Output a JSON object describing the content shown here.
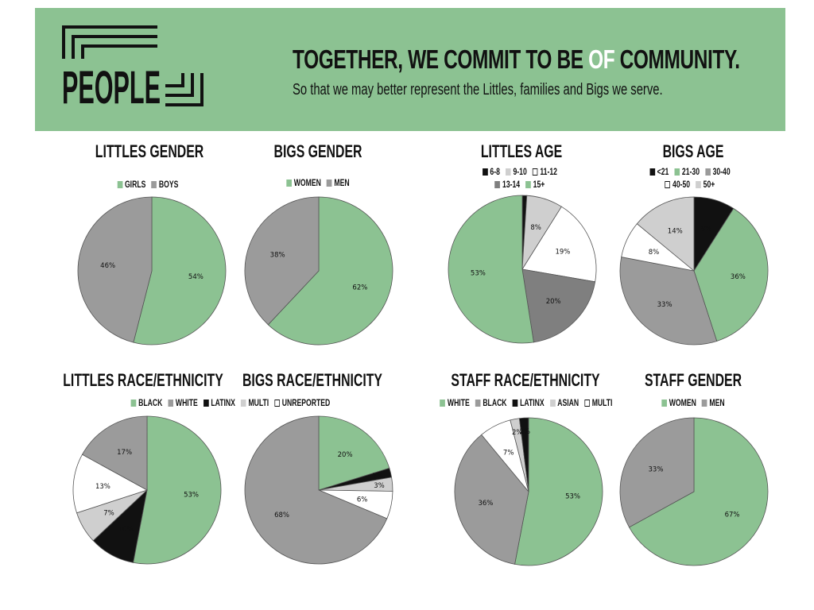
{
  "header": {
    "logo_text": "PEOPLE",
    "headline_pre": "TOGETHER, WE COMMIT TO BE ",
    "headline_of": "OF",
    "headline_post": " COMMUNITY.",
    "subline": "So that we may better represent the Littles, families and Bigs we serve.",
    "background_color": "#8cc292"
  },
  "colors": {
    "green": "#8cc292",
    "gray": "#9b9b9b",
    "dark_gray": "#7f7f7f",
    "light_gray": "#cfcfcf",
    "black": "#111111",
    "white": "#ffffff"
  },
  "chart_data": [
    {
      "id": "littles-gender",
      "type": "pie",
      "title": "LITTLES GENDER",
      "legend": [
        {
          "label": "GIRLS",
          "color": "#8cc292"
        },
        {
          "label": "BOYS",
          "color": "#9b9b9b"
        }
      ],
      "slices": [
        {
          "label": "GIRLS",
          "value": 54,
          "text": "54%",
          "color": "#8cc292"
        },
        {
          "label": "BOYS",
          "value": 46,
          "text": "46%",
          "color": "#9b9b9b"
        }
      ]
    },
    {
      "id": "bigs-gender",
      "type": "pie",
      "title": "BIGS GENDER",
      "legend": [
        {
          "label": "WOMEN",
          "color": "#8cc292"
        },
        {
          "label": "MEN",
          "color": "#9b9b9b"
        }
      ],
      "slices": [
        {
          "label": "WOMEN",
          "value": 62,
          "text": "62%",
          "color": "#8cc292"
        },
        {
          "label": "MEN",
          "value": 38,
          "text": "38%",
          "color": "#9b9b9b"
        }
      ]
    },
    {
      "id": "littles-age",
      "type": "pie",
      "title": "LITTLES AGE",
      "legend": [
        {
          "label": "6-8",
          "color": "#111111"
        },
        {
          "label": "9-10",
          "color": "#cfcfcf"
        },
        {
          "label": "11-12",
          "color": "#ffffff"
        },
        {
          "label": "13-14",
          "color": "#7f7f7f"
        },
        {
          "label": "15+",
          "color": "#8cc292"
        }
      ],
      "slices": [
        {
          "label": "6-8",
          "value": 1,
          "text": "1%",
          "color": "#111111"
        },
        {
          "label": "9-10",
          "value": 8,
          "text": "8%",
          "color": "#cfcfcf"
        },
        {
          "label": "11-12",
          "value": 19,
          "text": "19%",
          "color": "#ffffff"
        },
        {
          "label": "13-14",
          "value": 20,
          "text": "20%",
          "color": "#7f7f7f"
        },
        {
          "label": "15+",
          "value": 53,
          "text": "53%",
          "color": "#8cc292"
        }
      ]
    },
    {
      "id": "bigs-age",
      "type": "pie",
      "title": "BIGS AGE",
      "legend": [
        {
          "label": "<21",
          "color": "#111111"
        },
        {
          "label": "21-30",
          "color": "#8cc292"
        },
        {
          "label": "30-40",
          "color": "#9b9b9b"
        },
        {
          "label": "40-50",
          "color": "#ffffff"
        },
        {
          "label": "50+",
          "color": "#cfcfcf"
        }
      ],
      "slices": [
        {
          "label": "<21",
          "value": 9,
          "text": "9%",
          "color": "#111111"
        },
        {
          "label": "21-30",
          "value": 36,
          "text": "36%",
          "color": "#8cc292"
        },
        {
          "label": "30-40",
          "value": 33,
          "text": "33%",
          "color": "#9b9b9b"
        },
        {
          "label": "40-50",
          "value": 8,
          "text": "8%",
          "color": "#ffffff"
        },
        {
          "label": "50+",
          "value": 14,
          "text": "14%",
          "color": "#cfcfcf"
        }
      ]
    },
    {
      "id": "littles-race",
      "type": "pie",
      "title": "LITTLES RACE/ETHNICITY",
      "legend": [
        {
          "label": "BLACK",
          "color": "#8cc292"
        },
        {
          "label": "WHITE",
          "color": "#9b9b9b"
        },
        {
          "label": "LATINX",
          "color": "#111111"
        },
        {
          "label": "MULTI",
          "color": "#cfcfcf"
        },
        {
          "label": "UNREPORTED",
          "color": "#ffffff"
        }
      ],
      "slices": [
        {
          "label": "BLACK",
          "value": 53,
          "text": "53%",
          "color": "#8cc292"
        },
        {
          "label": "LATINX",
          "value": 10,
          "text": "10%",
          "color": "#111111"
        },
        {
          "label": "MULTI",
          "value": 7,
          "text": "7%",
          "color": "#cfcfcf"
        },
        {
          "label": "UNREPORTED",
          "value": 13,
          "text": "13%",
          "color": "#ffffff"
        },
        {
          "label": "WHITE",
          "value": 17,
          "text": "17%",
          "color": "#9b9b9b"
        }
      ]
    },
    {
      "id": "bigs-race",
      "type": "pie",
      "title": "BIGS RACE/ETHNICITY",
      "legend": [],
      "slices": [
        {
          "label": "BLACK",
          "value": 20,
          "text": "20%",
          "color": "#8cc292"
        },
        {
          "label": "LATINX",
          "value": 2,
          "text": "2%",
          "color": "#111111"
        },
        {
          "label": "MULTI",
          "value": 3,
          "text": "3%",
          "color": "#cfcfcf"
        },
        {
          "label": "UNREPORTED",
          "value": 6,
          "text": "6%",
          "color": "#ffffff"
        },
        {
          "label": "WHITE",
          "value": 68,
          "text": "68%",
          "color": "#9b9b9b"
        }
      ]
    },
    {
      "id": "staff-race",
      "type": "pie",
      "title": "STAFF RACE/ETHNICITY",
      "legend": [
        {
          "label": "WHITE",
          "color": "#8cc292"
        },
        {
          "label": "BLACK",
          "color": "#9b9b9b"
        },
        {
          "label": "LATINX",
          "color": "#111111"
        },
        {
          "label": "ASIAN",
          "color": "#cfcfcf"
        },
        {
          "label": "MULTI",
          "color": "#ffffff"
        }
      ],
      "slices": [
        {
          "label": "WHITE",
          "value": 53,
          "text": "53%",
          "color": "#8cc292"
        },
        {
          "label": "BLACK",
          "value": 36,
          "text": "36%",
          "color": "#9b9b9b"
        },
        {
          "label": "MULTI",
          "value": 7,
          "text": "7%",
          "color": "#ffffff"
        },
        {
          "label": "ASIAN",
          "value": 2,
          "text": "2%",
          "color": "#cfcfcf"
        },
        {
          "label": "LATINX",
          "value": 2,
          "text": "2%",
          "color": "#111111"
        }
      ]
    },
    {
      "id": "staff-gender",
      "type": "pie",
      "title": "STAFF GENDER",
      "legend": [
        {
          "label": "WOMEN",
          "color": "#8cc292"
        },
        {
          "label": "MEN",
          "color": "#9b9b9b"
        }
      ],
      "slices": [
        {
          "label": "WOMEN",
          "value": 67,
          "text": "67%",
          "color": "#8cc292"
        },
        {
          "label": "MEN",
          "value": 33,
          "text": "33%",
          "color": "#9b9b9b"
        }
      ]
    }
  ]
}
